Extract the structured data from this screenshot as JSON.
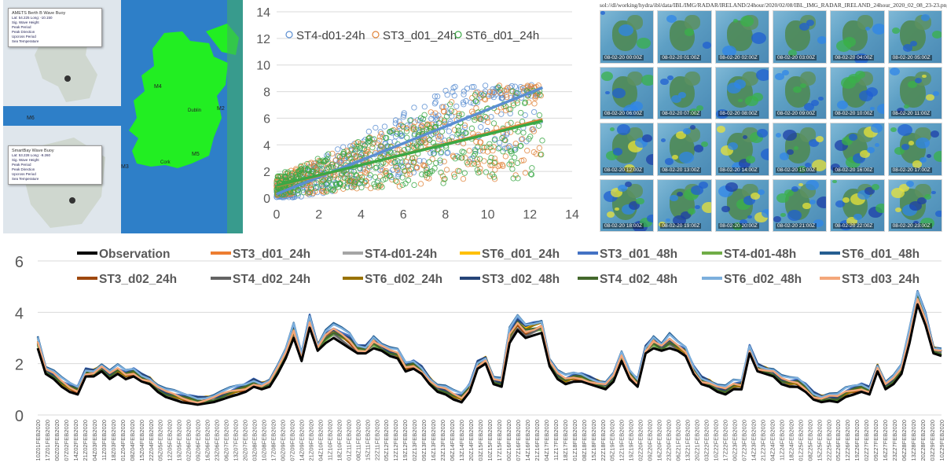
{
  "map": {
    "popup1": {
      "title": "AMETS Berth B Wave Buoy",
      "lines": [
        "Lat: 54.225 Long: -10.150",
        "Sig. Wave Height",
        "Peak Period",
        "Peak Direction",
        "Upcross Period",
        "Sea Temperature"
      ]
    },
    "popup2": {
      "title": "SmartBay Wave Buoy",
      "lines": [
        "Lat: 53.228 Long: -9.260",
        "Sig. Wave Height",
        "Peak Period",
        "Peak Direction",
        "Upcross Period",
        "Sea Temperature"
      ]
    },
    "labels": {
      "m6": "M6",
      "m4": "M4",
      "m3": "M3",
      "m5": "M5",
      "m2": "M2",
      "dublin": "Dublin",
      "cork": "Cork"
    },
    "colors": {
      "sea": "#2e7fc8",
      "land": "#22ee22"
    }
  },
  "radar": {
    "title": "sol://dl/working/hydra/ibl/data/IBL/IMG/RADAR/IRELAND/24hour/2020/02/08/IBL_IMG_RADAR_IRELAND_24hour_2020_02_08_23-23.png",
    "stamps": [
      "08-02-20 00:00Z",
      "08-02-20 01:00Z",
      "08-02-20 02:00Z",
      "08-02-20 03:00Z",
      "08-02-20 04:00Z",
      "08-02-20 05:00Z",
      "08-02-20 06:00Z",
      "08-02-20 07:00Z",
      "08-02-20 08:00Z",
      "08-02-20 09:00Z",
      "08-02-20 10:00Z",
      "08-02-20 11:00Z",
      "08-02-20 12:00Z",
      "08-02-20 13:00Z",
      "08-02-20 14:00Z",
      "08-02-20 15:00Z",
      "08-02-20 16:00Z",
      "08-02-20 17:00Z",
      "08-02-20 18:00Z",
      "08-02-20 19:00Z",
      "08-02-20 20:00Z",
      "08-02-20 21:00Z",
      "08-02-20 22:00Z",
      "08-02-20 23:00Z"
    ]
  },
  "chart_data": [
    {
      "type": "scatter",
      "xlim": [
        0,
        14
      ],
      "ylim": [
        0,
        14
      ],
      "xticks": [
        0,
        2,
        4,
        6,
        8,
        10,
        12,
        14
      ],
      "yticks": [
        0,
        2,
        4,
        6,
        8,
        10,
        12,
        14
      ],
      "grid": "horizontal",
      "legend_position": "top",
      "series": [
        {
          "name": "ST4-d01-24h",
          "color": "#5b8ed1",
          "trend": [
            [
              0,
              0.3
            ],
            [
              12.6,
              8.3
            ]
          ]
        },
        {
          "name": "ST3_d01_24h",
          "color": "#e0843a",
          "trend": [
            [
              0,
              0.9
            ],
            [
              12.6,
              5.9
            ]
          ]
        },
        {
          "name": "ST6_d01_24h",
          "color": "#3aa845",
          "trend": [
            [
              0,
              0.95
            ],
            [
              12.6,
              5.8
            ]
          ]
        }
      ]
    },
    {
      "type": "line",
      "ylim": [
        0,
        6
      ],
      "yticks": [
        0,
        2,
        4,
        6
      ],
      "grid": "horizontal",
      "legend_position": "top",
      "x_labels": [
        "10Z01FEB2020",
        "17Z01FEB2020",
        "00Z02FEB2020",
        "07Z02FEB2020",
        "14Z02FEB2020",
        "21Z02FEB2020",
        "04Z03FEB2020",
        "11Z03FEB2020",
        "18Z03FEB2020",
        "01Z04FEB2020",
        "08Z04FEB2020",
        "15Z04FEB2020",
        "22Z04FEB2020",
        "05Z05FEB2020",
        "12Z05FEB2020",
        "19Z05FEB2020",
        "02Z06FEB2020",
        "09Z06FEB2020",
        "16Z06FEB2020",
        "23Z06FEB2020",
        "06Z07FEB2020",
        "13Z07FEB2020",
        "20Z07FEB2020",
        "03Z08FEB2020",
        "10Z08FEB2020",
        "17Z08FEB2020",
        "00Z09FEB2020",
        "07Z09FEB2020",
        "14Z09FEB2020",
        "21Z09FEB2020",
        "04Z10FEB2020",
        "11Z10FEB2020",
        "18Z10FEB2020",
        "01Z11FEB2020",
        "08Z11FEB2020",
        "15Z11FEB2020",
        "22Z11FEB2020",
        "05Z12FEB2020",
        "12Z12FEB2020",
        "19Z12FEB2020",
        "02Z13FEB2020",
        "09Z13FEB2020",
        "16Z13FEB2020",
        "23Z13FEB2020",
        "06Z14FEB2020",
        "13Z14FEB2020",
        "20Z14FEB2020",
        "03Z15FEB2020",
        "10Z15FEB2020",
        "17Z15FEB2020",
        "00Z16FEB2020",
        "07Z16FEB2020",
        "14Z16FEB2020",
        "21Z16FEB2020",
        "04Z17FEB2020",
        "11Z17FEB2020",
        "18Z17FEB2020",
        "01Z18FEB2020",
        "08Z18FEB2020",
        "15Z18FEB2020",
        "22Z18FEB2020",
        "05Z19FEB2020",
        "12Z19FEB2020",
        "19Z19FEB2020",
        "02Z20FEB2020",
        "09Z20FEB2020",
        "16Z20FEB2020",
        "23Z20FEB2020",
        "06Z21FEB2020",
        "13Z21FEB2020",
        "20Z21FEB2020",
        "03Z22FEB2020",
        "10Z22FEB2020",
        "17Z22FEB2020",
        "00Z23FEB2020",
        "07Z23FEB2020",
        "14Z23FEB2020",
        "21Z23FEB2020",
        "04Z24FEB2020",
        "11Z24FEB2020",
        "18Z24FEB2020",
        "01Z25FEB2020",
        "08Z25FEB2020",
        "15Z25FEB2020",
        "22Z25FEB2020",
        "05Z26FEB2020",
        "12Z26FEB2020",
        "19Z26FEB2020",
        "02Z27FEB2020",
        "09Z27FEB2020",
        "16Z27FEB2020",
        "23Z27FEB2020",
        "06Z28FEB2020",
        "13Z28FEB2020",
        "20Z28FEB2020",
        "03Z29FEB2020",
        "10Z29FEB2020"
      ],
      "observation": [
        2.6,
        1.6,
        1.4,
        1.1,
        0.9,
        0.8,
        1.5,
        1.5,
        1.7,
        1.4,
        1.6,
        1.4,
        1.5,
        1.3,
        1.2,
        0.9,
        0.7,
        0.6,
        0.5,
        0.45,
        0.4,
        0.45,
        0.5,
        0.6,
        0.7,
        0.8,
        0.9,
        1.1,
        1.0,
        1.1,
        1.6,
        2.2,
        3.0,
        2.1,
        3.4,
        2.5,
        2.8,
        3.0,
        2.8,
        2.6,
        2.4,
        2.4,
        2.6,
        2.5,
        2.3,
        2.2,
        1.7,
        1.8,
        1.6,
        1.2,
        0.9,
        0.8,
        0.6,
        0.5,
        0.9,
        1.8,
        2.0,
        1.2,
        1.1,
        2.8,
        3.3,
        3.0,
        3.1,
        3.2,
        1.9,
        1.4,
        1.2,
        1.3,
        1.3,
        1.2,
        1.1,
        1.0,
        1.3,
        2.1,
        1.4,
        1.1,
        2.4,
        2.6,
        2.5,
        2.6,
        2.5,
        2.3,
        1.6,
        1.2,
        1.1,
        0.9,
        0.8,
        1.0,
        1.0,
        2.4,
        1.7,
        1.6,
        1.5,
        1.2,
        1.1,
        1.1,
        0.9,
        0.6,
        0.5,
        0.55,
        0.5,
        0.7,
        0.8,
        0.9,
        0.8,
        1.7,
        1.0,
        1.2,
        1.6,
        2.8,
        4.3,
        3.5,
        2.4,
        2.3
      ],
      "series": [
        {
          "name": "Observation",
          "color": "#000000",
          "offset": 0.0
        },
        {
          "name": "ST3_d01_24h",
          "color": "#ed7d31",
          "offset": 0.15
        },
        {
          "name": "ST4-d01-24h",
          "color": "#a5a5a5",
          "offset": 0.05
        },
        {
          "name": "ST6_d01_24h",
          "color": "#ffc000",
          "offset": 0.2
        },
        {
          "name": "ST3_d01_48h",
          "color": "#4472c4",
          "offset": 0.25
        },
        {
          "name": "ST4-d01-48h",
          "color": "#70ad47",
          "offset": 0.1
        },
        {
          "name": "ST6_d01_48h",
          "color": "#255e91",
          "offset": 0.3
        },
        {
          "name": "ST3_d02_24h",
          "color": "#9e480e",
          "offset": 0.12
        },
        {
          "name": "ST4_d02_24h",
          "color": "#636363",
          "offset": 0.08
        },
        {
          "name": "ST6_d02_24h",
          "color": "#997300",
          "offset": 0.18
        },
        {
          "name": "ST3_d02_48h",
          "color": "#264478",
          "offset": 0.22
        },
        {
          "name": "ST4_d02_48h",
          "color": "#43682b",
          "offset": 0.14
        },
        {
          "name": "ST6_d02_48h",
          "color": "#7cafdd",
          "offset": 0.28
        },
        {
          "name": "ST3_d03_24h",
          "color": "#f4a77a",
          "offset": 0.16
        }
      ]
    }
  ]
}
